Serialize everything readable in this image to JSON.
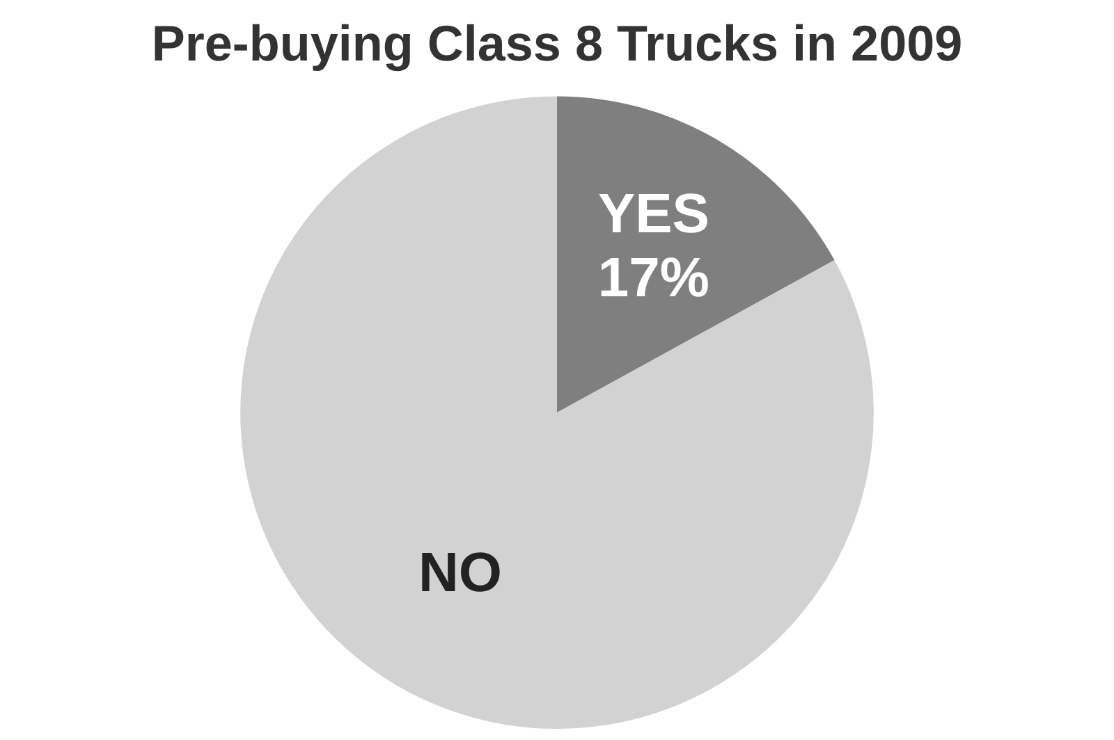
{
  "chart_data": {
    "type": "pie",
    "title": "Pre-buying Class 8 Trucks in 2009",
    "categories": [
      "YES",
      "NO"
    ],
    "values": [
      17,
      83
    ],
    "colors": [
      "#7f7f7f",
      "#d2d2d2"
    ],
    "value_labels": [
      "17%",
      null
    ],
    "legend": false
  }
}
